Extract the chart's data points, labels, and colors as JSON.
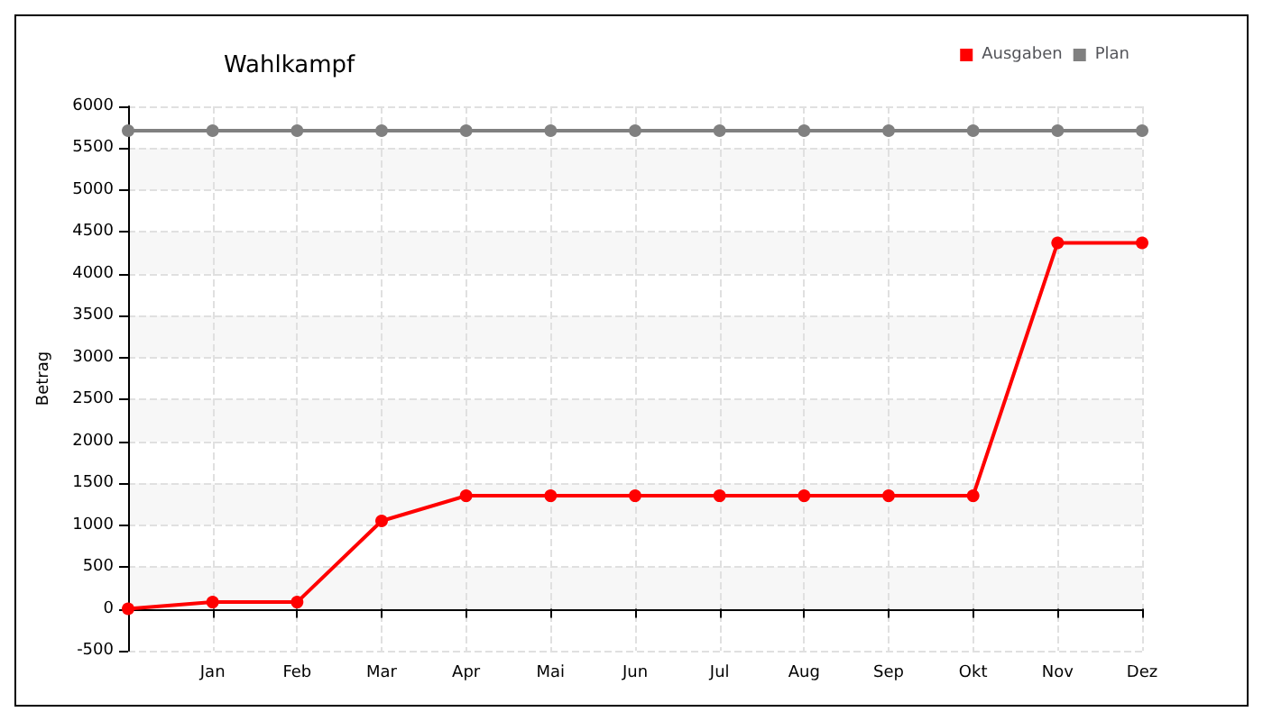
{
  "chart_data": {
    "type": "line",
    "title": "Wahlkampf",
    "ylabel": "Betrag",
    "categories": [
      null,
      "Jan",
      "Feb",
      "Mar",
      "Apr",
      "Mai",
      "Jun",
      "Jul",
      "Aug",
      "Sep",
      "Okt",
      "Nov",
      "Dez"
    ],
    "series": [
      {
        "name": "Ausgaben",
        "color": "#ff0000",
        "values": [
          0,
          80,
          80,
          1050,
          1350,
          1350,
          1350,
          1350,
          1350,
          1350,
          1350,
          4370,
          4370
        ]
      },
      {
        "name": "Plan",
        "color": "#808080",
        "values": [
          5710,
          5710,
          5710,
          5710,
          5710,
          5710,
          5710,
          5710,
          5710,
          5710,
          5710,
          5710,
          5710
        ]
      }
    ],
    "ylim": [
      -500,
      6000
    ],
    "yticks": [
      -500,
      0,
      500,
      1000,
      1500,
      2000,
      2500,
      3000,
      3500,
      4000,
      4500,
      5000,
      5500,
      6000
    ],
    "grid": true,
    "legend": "top right",
    "marker": "circle",
    "line_style": "solid"
  }
}
